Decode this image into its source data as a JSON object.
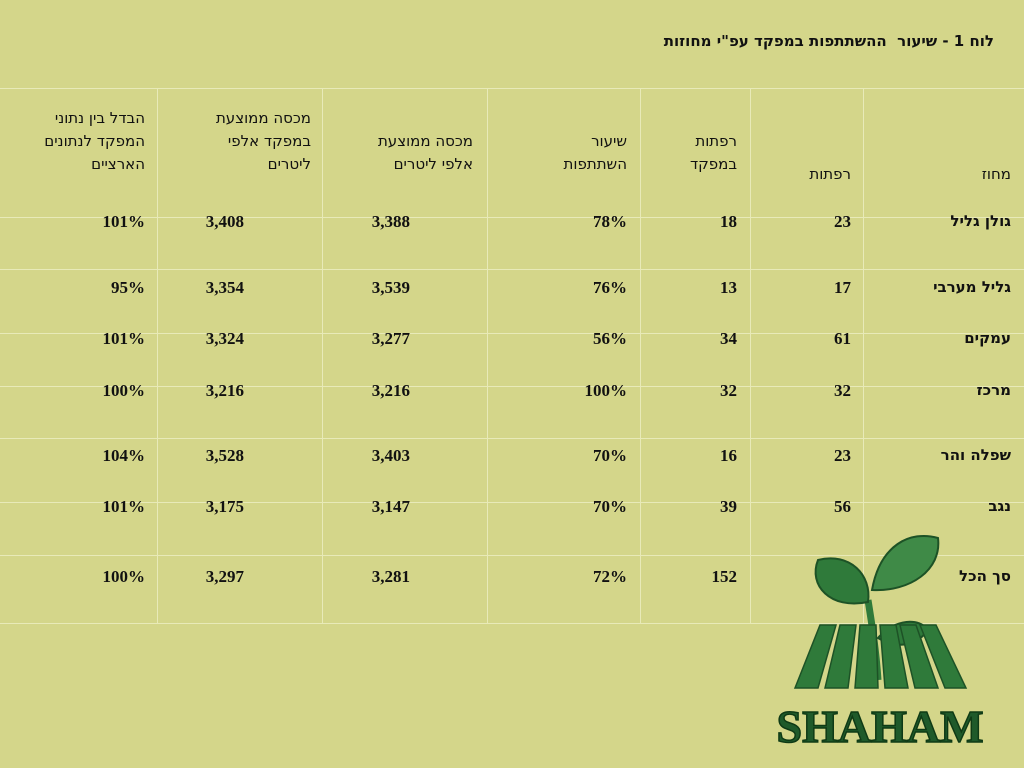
{
  "title": "לוח 1 - שיעור  ההשתתפות במפקד עפ\"י מחוזות",
  "headers": {
    "district": "מחוז",
    "herds": "רפתות",
    "herds_census": "רפתות\nבמפקד",
    "rate": "שיעור\nהשתתפות",
    "avg_quota": "מכסה ממוצעת\nאלפי ליטרים",
    "avg_quota_census": "מכסה ממוצעת\nבמפקד אלפי\nליטרים",
    "diff": "הבדל בין נתוני\nהמפקד לנתונים\nהארציים"
  },
  "rows": [
    {
      "district": "גולן גליל",
      "herds": "23",
      "herds_census": "18",
      "rate": "78%",
      "avg_quota": "3,388",
      "avg_quota_census": "3,408",
      "diff": "101%"
    },
    {
      "district": "גליל מערבי",
      "herds": "17",
      "herds_census": "13",
      "rate": "76%",
      "avg_quota": "3,539",
      "avg_quota_census": "3,354",
      "diff": "95%"
    },
    {
      "district": "עמקים",
      "herds": "61",
      "herds_census": "34",
      "rate": "56%",
      "avg_quota": "3,277",
      "avg_quota_census": "3,324",
      "diff": "101%"
    },
    {
      "district": "מרכז",
      "herds": "32",
      "herds_census": "32",
      "rate": "100%",
      "avg_quota": "3,216",
      "avg_quota_census": "3,216",
      "diff": "100%"
    },
    {
      "district": "שפלה והר",
      "herds": "23",
      "herds_census": "16",
      "rate": "70%",
      "avg_quota": "3,403",
      "avg_quota_census": "3,528",
      "diff": "104%"
    },
    {
      "district": "נגב",
      "herds": "56",
      "herds_census": "39",
      "rate": "70%",
      "avg_quota": "3,147",
      "avg_quota_census": "3,175",
      "diff": "101%"
    },
    {
      "district": "סך הכל",
      "herds": "212",
      "herds_census": "152",
      "rate": "72%",
      "avg_quota": "3,281",
      "avg_quota_census": "3,297",
      "diff": "100%"
    }
  ],
  "logo": {
    "text": "SHAHAM",
    "colors": {
      "leaf": "#2f7a3a",
      "text": "#1f5a2a"
    }
  }
}
